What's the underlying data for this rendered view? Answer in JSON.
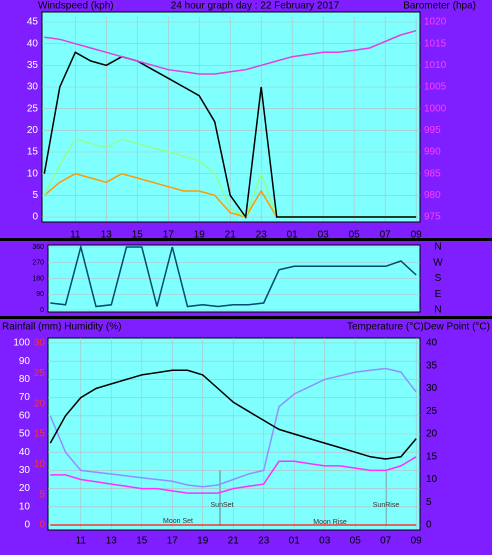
{
  "chart_data": [
    {
      "type": "line",
      "title": "24 hour graph day : 22 February 2017",
      "ylabel": "Windspeed (kph)",
      "y2label": "Barometer (hpa)",
      "x": [
        9,
        10,
        11,
        12,
        13,
        14,
        15,
        16,
        17,
        18,
        19,
        20,
        21,
        22,
        23,
        24,
        25,
        26,
        27,
        28,
        29,
        30,
        31,
        32,
        33
      ],
      "xlim": [
        8.85,
        33.25
      ],
      "xticks": [
        11,
        13,
        15,
        17,
        19,
        21,
        23,
        {
          "value": 25,
          "label": "01"
        },
        {
          "value": 27,
          "label": "03"
        },
        {
          "value": 29,
          "label": "05"
        },
        {
          "value": 31,
          "label": "07"
        },
        {
          "value": 33,
          "label": "09"
        }
      ],
      "ylim": [
        0,
        45
      ],
      "yticks": [
        0,
        5,
        10,
        15,
        20,
        25,
        30,
        35,
        40,
        45
      ],
      "y2lim": [
        975,
        1020
      ],
      "y2ticks": [
        975,
        980,
        985,
        990,
        995,
        1000,
        1005,
        1010,
        1015,
        1020
      ],
      "grid": true,
      "series": [
        {
          "color": "#ff9900",
          "values": [
            5,
            8,
            10,
            9,
            8,
            10,
            9,
            8,
            7,
            6,
            6,
            5,
            1,
            0,
            6,
            0,
            0,
            0,
            0,
            0,
            0,
            0,
            0,
            0,
            0
          ]
        },
        {
          "color": "#90ff90",
          "values": [
            5,
            12,
            18,
            17,
            16,
            18,
            17,
            16,
            15,
            14,
            13,
            10,
            2,
            0,
            10,
            0,
            0,
            0,
            0,
            0,
            0,
            0,
            0,
            0,
            0
          ]
        },
        {
          "color": "#000000",
          "values": [
            10,
            30,
            38,
            36,
            35,
            37,
            36,
            34,
            32,
            30,
            28,
            22,
            5,
            0,
            30,
            0,
            0,
            0,
            0,
            0,
            0,
            0,
            0,
            0,
            0
          ]
        },
        {
          "color": "#e040e0",
          "axis": "y2",
          "values": [
            1016.5,
            1016,
            1015,
            1014,
            1013,
            1012,
            1011,
            1010,
            1009,
            1008.5,
            1008,
            1008,
            1008.5,
            1009,
            1010,
            1011,
            1012,
            1012.5,
            1013,
            1013,
            1013.5,
            1014,
            1015.5,
            1017,
            1018
          ]
        }
      ]
    },
    {
      "type": "line",
      "x": [
        9,
        10,
        11,
        12,
        13,
        14,
        15,
        16,
        17,
        18,
        19,
        20,
        21,
        22,
        23,
        24,
        25,
        26,
        27,
        28,
        29,
        30,
        31,
        32,
        33
      ],
      "xlim": [
        8.85,
        33.25
      ],
      "ylim": [
        0,
        360
      ],
      "yticks": [
        0,
        90,
        180,
        270,
        360
      ],
      "y2lim": [
        0,
        360
      ],
      "y2ticks": [
        {
          "value": 0,
          "label": "N"
        },
        {
          "value": 90,
          "label": "E"
        },
        {
          "value": 180,
          "label": "S"
        },
        {
          "value": 270,
          "label": "W"
        },
        {
          "value": 360,
          "label": "N"
        }
      ],
      "grid": true,
      "series": [
        {
          "color": "#004a6a",
          "values": [
            40,
            30,
            360,
            20,
            30,
            360,
            360,
            20,
            360,
            20,
            30,
            20,
            30,
            30,
            40,
            230,
            250,
            250,
            250,
            250,
            250,
            250,
            250,
            280,
            200
          ]
        }
      ]
    },
    {
      "type": "line",
      "ylabel": "Rainfall (mm)  Humidity (%)",
      "y2label": "Temperature (°C)Dew Point (°C)",
      "x": [
        9,
        10,
        11,
        12,
        13,
        14,
        15,
        16,
        17,
        18,
        19,
        20,
        21,
        22,
        23,
        24,
        25,
        26,
        27,
        28,
        29,
        30,
        31,
        32,
        33
      ],
      "xlim": [
        8.85,
        33.25
      ],
      "xticks": [
        11,
        13,
        15,
        17,
        19,
        21,
        23,
        {
          "value": 25,
          "label": "01"
        },
        {
          "value": 27,
          "label": "03"
        },
        {
          "value": 29,
          "label": "05"
        },
        {
          "value": 31,
          "label": "07"
        },
        {
          "value": 33,
          "label": "09"
        }
      ],
      "ylim": [
        0,
        100
      ],
      "yticks": [
        0,
        10,
        20,
        30,
        40,
        50,
        60,
        70,
        80,
        90,
        100
      ],
      "y3lim": [
        0,
        30
      ],
      "y3ticks": [
        0,
        5,
        10,
        15,
        20,
        25,
        30
      ],
      "y2lim": [
        0,
        40
      ],
      "y2ticks": [
        0,
        5,
        10,
        15,
        20,
        25,
        30,
        35,
        40
      ],
      "grid": true,
      "annotations": [
        "Moon Set",
        "SunSet",
        "Moon Rise",
        "SunRise"
      ],
      "series": [
        {
          "color": "#ff3030",
          "axis": "y3",
          "values": [
            0,
            0,
            0,
            0,
            0,
            0,
            0,
            0,
            0,
            0,
            0,
            0,
            0,
            0,
            0,
            0,
            0,
            0,
            0,
            0,
            0,
            0,
            0,
            0,
            0
          ]
        },
        {
          "color": "#9090ff",
          "values": [
            60,
            40,
            30,
            29,
            28,
            27,
            26,
            25,
            24,
            22,
            21,
            22,
            25,
            28,
            30,
            65,
            72,
            76,
            80,
            82,
            84,
            85,
            86,
            84,
            73
          ]
        },
        {
          "color": "#ff30ff",
          "axis": "y2",
          "values": [
            11,
            11,
            10,
            9.5,
            9,
            8.5,
            8,
            8,
            7.5,
            7,
            7,
            7,
            8,
            8.5,
            9,
            14,
            14,
            13.5,
            13,
            13,
            12.5,
            12,
            12,
            13,
            15
          ]
        },
        {
          "color": "#000000",
          "axis": "y2",
          "values": [
            18,
            24,
            28,
            30,
            31,
            32,
            33,
            33.5,
            34,
            34,
            33,
            30,
            27,
            25,
            23,
            21,
            20,
            19,
            18,
            17,
            16,
            15,
            14.5,
            15,
            19
          ]
        }
      ]
    }
  ]
}
